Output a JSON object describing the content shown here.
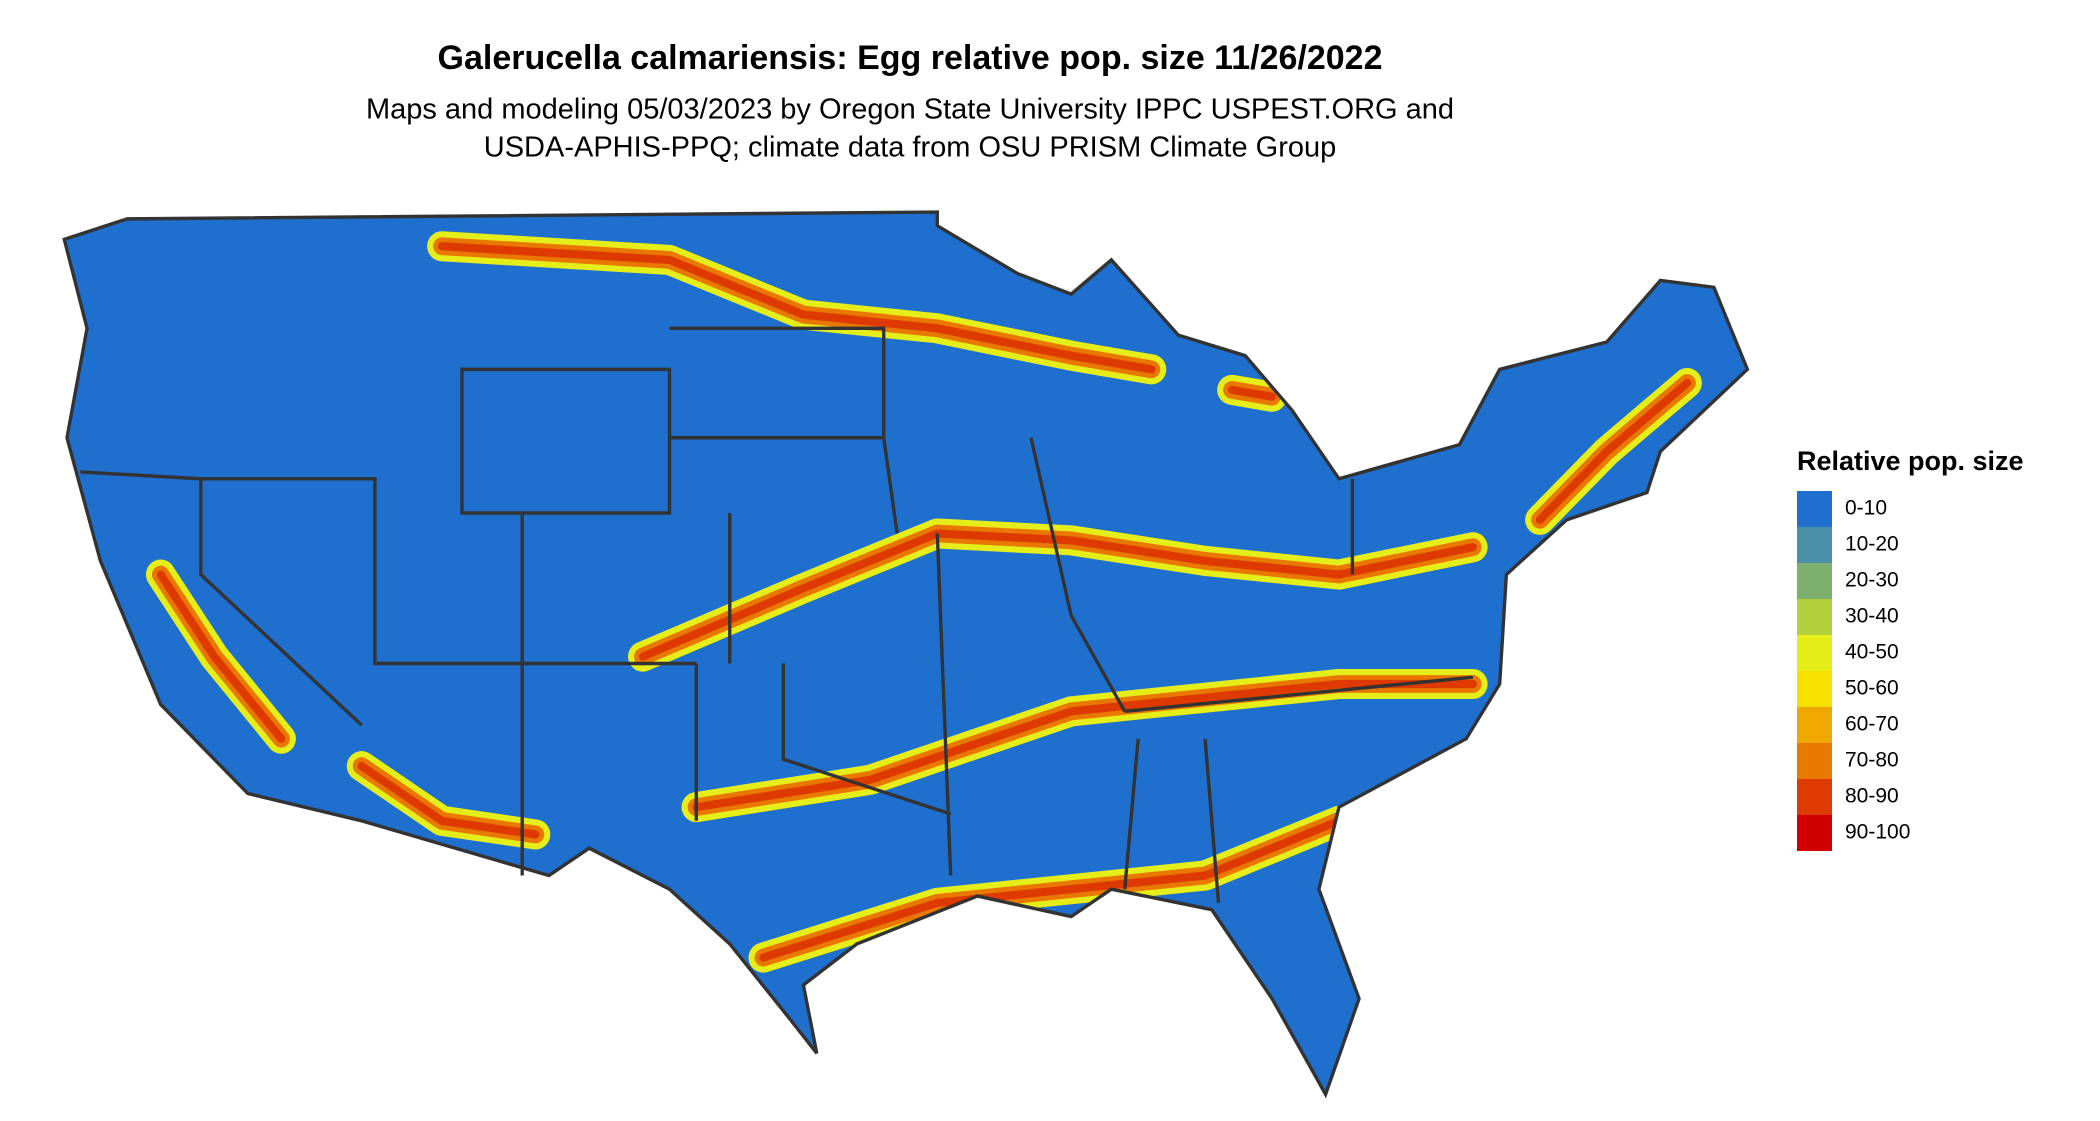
{
  "header": {
    "title": "Galerucella calmariensis: Egg relative pop. size 11/26/2022",
    "subtitle_lines": [
      "Maps and modeling 05/03/2023 by Oregon State University IPPC USPEST.ORG and",
      "USDA-APHIS-PPQ; climate data from OSU PRISM Climate Group"
    ]
  },
  "legend": {
    "title": "Relative pop. size",
    "items": [
      {
        "label": "0-10",
        "color": "#1f6fce"
      },
      {
        "label": "10-20",
        "color": "#4a8fa8"
      },
      {
        "label": "20-30",
        "color": "#7daf6e"
      },
      {
        "label": "30-40",
        "color": "#b3d13a"
      },
      {
        "label": "40-50",
        "color": "#e6ee1a"
      },
      {
        "label": "50-60",
        "color": "#f7df00"
      },
      {
        "label": "60-70",
        "color": "#f0a800"
      },
      {
        "label": "70-80",
        "color": "#e87800"
      },
      {
        "label": "80-90",
        "color": "#de3a00"
      },
      {
        "label": "90-100",
        "color": "#d00000"
      }
    ]
  }
}
